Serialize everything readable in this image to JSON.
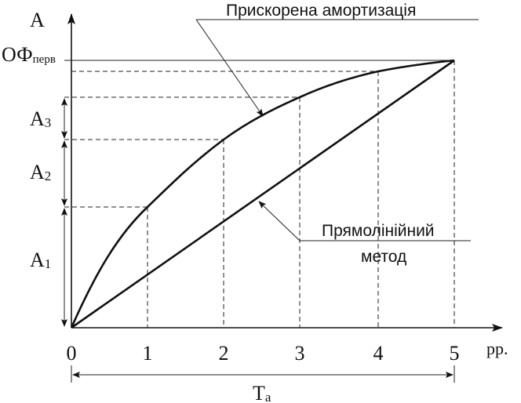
{
  "axis": {
    "y_label": "А",
    "x_label": "рр.",
    "x_ticks": [
      "0",
      "1",
      "2",
      "3",
      "4",
      "5"
    ]
  },
  "y_marks": {
    "of_main": "ОФ",
    "of_sub": "перв",
    "a3_main": "А",
    "a3_sub": "3",
    "a2_main": "А",
    "a2_sub": "2",
    "a1_main": "А",
    "a1_sub": "1"
  },
  "period": {
    "main": "Т",
    "sub": "а"
  },
  "annotations": {
    "accelerated": "Прискорена амортизація",
    "linear_line1": "Прямолінійний",
    "linear_line2": "метод"
  }
}
